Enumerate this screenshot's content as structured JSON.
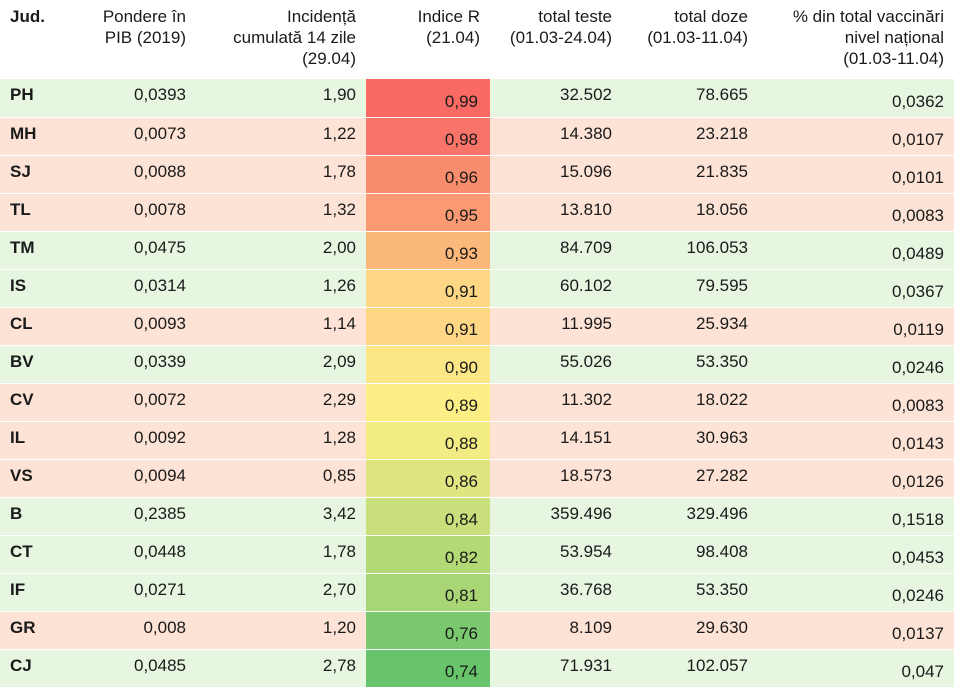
{
  "columns": [
    {
      "lines": [
        "Jud."
      ]
    },
    {
      "lines": [
        "Pondere în",
        "PIB (2019)"
      ]
    },
    {
      "lines": [
        "Incidență",
        "cumulată 14 zile",
        "(29.04)"
      ]
    },
    {
      "lines": [
        "Indice R",
        "(21.04)"
      ]
    },
    {
      "lines": [
        "total teste",
        "(01.03-24.04)"
      ]
    },
    {
      "lines": [
        "total doze",
        "(01.03-11.04)"
      ]
    },
    {
      "lines": [
        "% din total vaccinări",
        "nivel național",
        "(01.03-11.04)"
      ]
    }
  ],
  "rows": [
    {
      "cells": [
        "PH",
        "0,0393",
        "1,90",
        "0,99",
        "32.502",
        "78.665",
        "0,0362"
      ],
      "bg": "green",
      "r_color": "#f96a64"
    },
    {
      "cells": [
        "MH",
        "0,0073",
        "1,22",
        "0,98",
        "14.380",
        "23.218",
        "0,0107"
      ],
      "bg": "peach",
      "r_color": "#f97468"
    },
    {
      "cells": [
        "SJ",
        "0,0088",
        "1,78",
        "0,96",
        "15.096",
        "21.835",
        "0,0101"
      ],
      "bg": "peach",
      "r_color": "#fa8c6e"
    },
    {
      "cells": [
        "TL",
        "0,0078",
        "1,32",
        "0,95",
        "13.810",
        "18.056",
        "0,0083"
      ],
      "bg": "peach",
      "r_color": "#fb9a72"
    },
    {
      "cells": [
        "TM",
        "0,0475",
        "2,00",
        "0,93",
        "84.709",
        "106.053",
        "0,0489"
      ],
      "bg": "green",
      "r_color": "#fcb87a"
    },
    {
      "cells": [
        "IS",
        "0,0314",
        "1,26",
        "0,91",
        "60.102",
        "79.595",
        "0,0367"
      ],
      "bg": "green",
      "r_color": "#fdd783"
    },
    {
      "cells": [
        "CL",
        "0,0093",
        "1,14",
        "0,91",
        "11.995",
        "25.934",
        "0,0119"
      ],
      "bg": "peach",
      "r_color": "#fdd783"
    },
    {
      "cells": [
        "BV",
        "0,0339",
        "2,09",
        "0,90",
        "55.026",
        "53.350",
        "0,0246"
      ],
      "bg": "green",
      "r_color": "#fde685"
    },
    {
      "cells": [
        "CV",
        "0,0072",
        "2,29",
        "0,89",
        "11.302",
        "18.022",
        "0,0083"
      ],
      "bg": "peach",
      "r_color": "#fdef86"
    },
    {
      "cells": [
        "IL",
        "0,0092",
        "1,28",
        "0,88",
        "14.151",
        "30.963",
        "0,0143"
      ],
      "bg": "peach",
      "r_color": "#f3ec84"
    },
    {
      "cells": [
        "VS",
        "0,0094",
        "0,85",
        "0,86",
        "18.573",
        "27.282",
        "0,0126"
      ],
      "bg": "peach",
      "r_color": "#dfe680"
    },
    {
      "cells": [
        "B",
        "0,2385",
        "3,42",
        "0,84",
        "359.496",
        "329.496",
        "0,1518"
      ],
      "bg": "green",
      "r_color": "#c9df7b"
    },
    {
      "cells": [
        "CT",
        "0,0448",
        "1,78",
        "0,82",
        "53.954",
        "98.408",
        "0,0453"
      ],
      "bg": "green",
      "r_color": "#b3d977"
    },
    {
      "cells": [
        "IF",
        "0,0271",
        "2,70",
        "0,81",
        "36.768",
        "53.350",
        "0,0246"
      ],
      "bg": "green",
      "r_color": "#a9d675"
    },
    {
      "cells": [
        "GR",
        "0,008",
        "1,20",
        "0,76",
        "8.109",
        "29.630",
        "0,0137"
      ],
      "bg": "peach",
      "r_color": "#7bc96e"
    },
    {
      "cells": [
        "CJ",
        "0,0485",
        "2,78",
        "0,74",
        "71.931",
        "102.057",
        "0,047"
      ],
      "bg": "green",
      "r_color": "#68c46b"
    }
  ]
}
